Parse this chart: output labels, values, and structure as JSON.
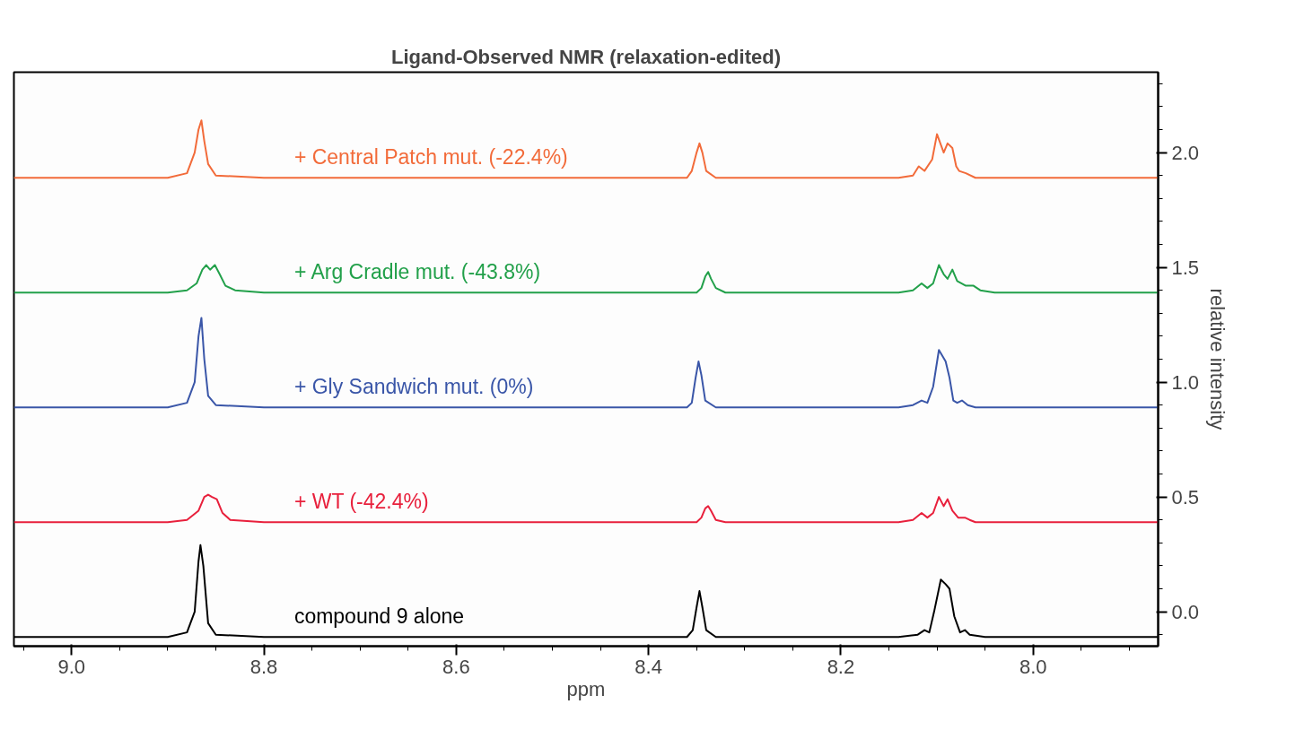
{
  "chart_data": {
    "type": "line",
    "title": "Ligand-Observed NMR (relaxation-edited)",
    "xlabel": "ppm",
    "ylabel": "relative intensity",
    "xlim": [
      9.06,
      7.87
    ],
    "ylim": [
      -0.15,
      2.35
    ],
    "xticks": [
      {
        "value": 9.0,
        "label": "9.0"
      },
      {
        "value": 8.8,
        "label": "8.8"
      },
      {
        "value": 8.6,
        "label": "8.6"
      },
      {
        "value": 8.4,
        "label": "8.4"
      },
      {
        "value": 8.2,
        "label": "8.2"
      },
      {
        "value": 8.0,
        "label": "8.0"
      }
    ],
    "yticks": [
      {
        "value": 0.0,
        "label": "0.0"
      },
      {
        "value": 0.5,
        "label": "0.5"
      },
      {
        "value": 1.0,
        "label": "1.0"
      },
      {
        "value": 1.5,
        "label": "1.5"
      },
      {
        "value": 2.0,
        "label": "2.0"
      }
    ],
    "grid": false,
    "marker": "none",
    "line_style": "solid",
    "series": [
      {
        "name": "+ Central Patch mut. (-22.4%)",
        "color": "#f26b3a",
        "x": [
          9.06,
          8.9,
          8.88,
          8.872,
          8.868,
          8.865,
          8.862,
          8.858,
          8.85,
          8.8,
          8.36,
          8.355,
          8.35,
          8.347,
          8.344,
          8.34,
          8.33,
          8.14,
          8.125,
          8.119,
          8.113,
          8.105,
          8.1,
          8.093,
          8.089,
          8.084,
          8.08,
          8.077,
          8.07,
          8.06,
          7.87
        ],
        "values": [
          1.89,
          1.89,
          1.91,
          2.0,
          2.1,
          2.14,
          2.05,
          1.95,
          1.9,
          1.89,
          1.89,
          1.92,
          2.0,
          2.04,
          2.0,
          1.92,
          1.89,
          1.89,
          1.9,
          1.94,
          1.92,
          1.97,
          2.08,
          2.0,
          2.04,
          2.02,
          1.94,
          1.92,
          1.91,
          1.89,
          1.89
        ]
      },
      {
        "name": "+ Arg Cradle mut. (-43.8%)",
        "color": "#22a04a",
        "x": [
          9.06,
          8.9,
          8.88,
          8.87,
          8.864,
          8.86,
          8.856,
          8.851,
          8.846,
          8.84,
          8.83,
          8.8,
          8.35,
          8.345,
          8.341,
          8.338,
          8.335,
          8.33,
          8.32,
          8.14,
          8.125,
          8.116,
          8.11,
          8.104,
          8.098,
          8.093,
          8.089,
          8.084,
          8.079,
          8.07,
          8.062,
          8.055,
          8.04,
          7.87
        ],
        "values": [
          1.39,
          1.39,
          1.4,
          1.43,
          1.49,
          1.51,
          1.49,
          1.51,
          1.47,
          1.42,
          1.4,
          1.39,
          1.39,
          1.41,
          1.46,
          1.48,
          1.45,
          1.41,
          1.39,
          1.39,
          1.4,
          1.43,
          1.41,
          1.43,
          1.51,
          1.47,
          1.45,
          1.49,
          1.44,
          1.42,
          1.42,
          1.4,
          1.39,
          1.39
        ]
      },
      {
        "name": "+ Gly Sandwich mut. (0%)",
        "color": "#3a56a8",
        "x": [
          9.06,
          8.9,
          8.88,
          8.872,
          8.868,
          8.865,
          8.862,
          8.858,
          8.85,
          8.8,
          8.36,
          8.355,
          8.351,
          8.348,
          8.345,
          8.341,
          8.33,
          8.14,
          8.125,
          8.116,
          8.11,
          8.104,
          8.098,
          8.091,
          8.087,
          8.083,
          8.079,
          8.074,
          8.068,
          8.06,
          7.87
        ],
        "values": [
          0.89,
          0.89,
          0.91,
          1.0,
          1.2,
          1.28,
          1.1,
          0.94,
          0.9,
          0.89,
          0.89,
          0.91,
          1.02,
          1.09,
          1.03,
          0.92,
          0.89,
          0.89,
          0.9,
          0.92,
          0.91,
          0.98,
          1.14,
          1.09,
          1.02,
          0.92,
          0.91,
          0.92,
          0.9,
          0.89,
          0.89
        ]
      },
      {
        "name": "+ WT (-42.4%)",
        "color": "#e8203c",
        "x": [
          9.06,
          8.9,
          8.88,
          8.868,
          8.862,
          8.858,
          8.854,
          8.849,
          8.843,
          8.835,
          8.8,
          8.35,
          8.345,
          8.341,
          8.338,
          8.335,
          8.33,
          8.32,
          8.14,
          8.125,
          8.116,
          8.11,
          8.104,
          8.098,
          8.093,
          8.089,
          8.084,
          8.078,
          8.071,
          8.066,
          8.06,
          8.05,
          7.87
        ],
        "values": [
          0.39,
          0.39,
          0.4,
          0.44,
          0.5,
          0.51,
          0.5,
          0.49,
          0.43,
          0.4,
          0.39,
          0.39,
          0.41,
          0.45,
          0.46,
          0.44,
          0.4,
          0.39,
          0.39,
          0.4,
          0.43,
          0.41,
          0.43,
          0.5,
          0.46,
          0.49,
          0.44,
          0.41,
          0.41,
          0.4,
          0.39,
          0.39,
          0.39
        ]
      },
      {
        "name": "compound 9 alone",
        "color": "#000000",
        "x": [
          9.06,
          8.9,
          8.88,
          8.872,
          8.868,
          8.866,
          8.863,
          8.858,
          8.85,
          8.8,
          8.36,
          8.354,
          8.35,
          8.347,
          8.344,
          8.34,
          8.33,
          8.14,
          8.12,
          8.113,
          8.108,
          8.103,
          8.096,
          8.091,
          8.087,
          8.082,
          8.076,
          8.071,
          8.066,
          8.05,
          7.87
        ],
        "values": [
          -0.11,
          -0.11,
          -0.09,
          0.0,
          0.22,
          0.29,
          0.2,
          -0.05,
          -0.1,
          -0.11,
          -0.11,
          -0.08,
          0.02,
          0.09,
          0.02,
          -0.08,
          -0.11,
          -0.11,
          -0.1,
          -0.08,
          -0.09,
          0.0,
          0.14,
          0.12,
          0.1,
          -0.02,
          -0.09,
          -0.08,
          -0.1,
          -0.11,
          -0.11
        ]
      }
    ]
  }
}
